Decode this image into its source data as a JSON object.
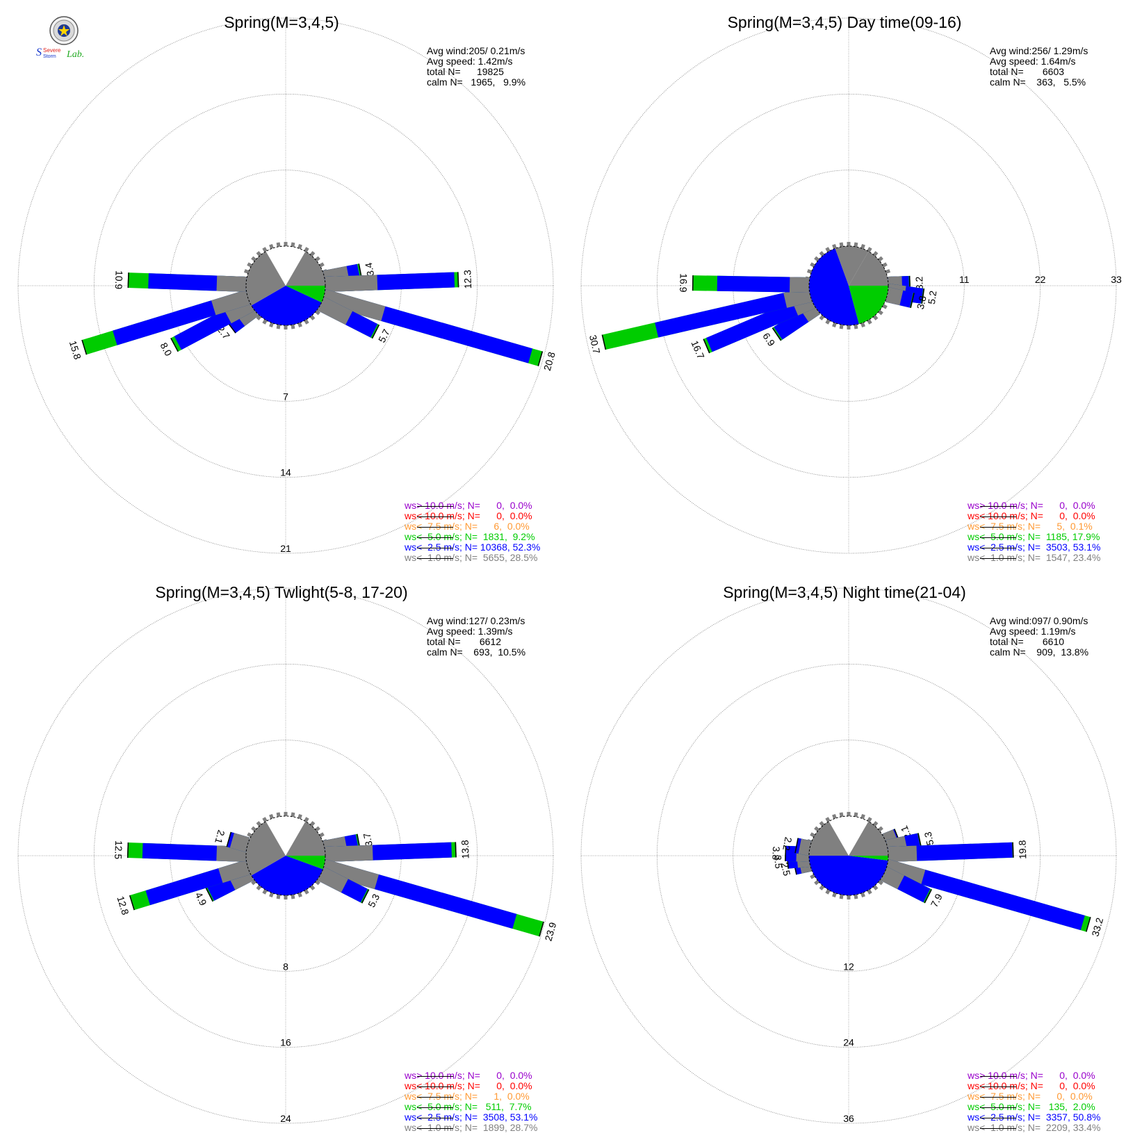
{
  "logo": {
    "icon": "severe-storm-lab-seal",
    "text": [
      "Severe",
      "Storm",
      "Lab."
    ]
  },
  "chart_data": [
    {
      "type": "windrose",
      "title": "Spring(M=3,4,5)",
      "stats": [
        "Avg wind:205/ 0.21m/s",
        "Avg speed: 1.42m/s",
        "total N=      19825",
        "calm N=   1965,   9.9%"
      ],
      "calm_pct": 9.9,
      "ring_max": 21,
      "ring_labels": [
        "7",
        "14",
        "21"
      ],
      "ring_label_side": "bottom",
      "calm_pie": [
        {
          "cls": "lt1",
          "start": 30,
          "end": 90
        },
        {
          "cls": "lt5",
          "start": 90,
          "end": 115
        },
        {
          "cls": "lt25",
          "start": 115,
          "end": 240
        },
        {
          "cls": "lt1",
          "start": 240,
          "end": 330
        }
      ],
      "petals": [
        {
          "dir": 79,
          "label": "3.4",
          "speed_pct": {
            "lt1": 2.2,
            "lt25": 3.2,
            "lt5": 3.4
          }
        },
        {
          "dir": 88,
          "label": "12.3",
          "speed_pct": {
            "lt1": 4.8,
            "lt25": 11.9,
            "lt5": 12.3
          }
        },
        {
          "dir": 106,
          "label": "20.8",
          "speed_pct": {
            "lt1": 5.7,
            "lt25": 19.8,
            "lt5": 20.8
          }
        },
        {
          "dir": 117,
          "label": "5.7",
          "speed_pct": {
            "lt1": 2.9,
            "lt25": 5.5,
            "lt5": 5.7
          }
        },
        {
          "dir": 233,
          "label": "2.7",
          "speed_pct": {
            "lt1": 1.6,
            "lt25": 2.7,
            "lt5": 2.7
          }
        },
        {
          "dir": 242,
          "label": "8.0",
          "speed_pct": {
            "lt1": 2.4,
            "lt25": 7.6,
            "lt5": 8.0
          }
        },
        {
          "dir": 253,
          "label": "15.8",
          "speed_pct": {
            "lt1": 3.3,
            "lt25": 12.8,
            "lt5": 15.8
          }
        },
        {
          "dir": 272,
          "label": "10.9",
          "speed_pct": {
            "lt1": 2.7,
            "lt25": 9.0,
            "lt5": 10.9
          }
        }
      ],
      "legend": [
        {
          "cls": "gt10",
          "color": "#9900cc",
          "text": "ws> 10.0 m/s; N=      0,  0.0%"
        },
        {
          "cls": "lt10",
          "color": "#ff0000",
          "text": "ws< 10.0 m/s; N=      0,  0.0%"
        },
        {
          "cls": "lt75",
          "color": "#ff9933",
          "text": "ws<  7.5 m/s; N=      6,  0.0%"
        },
        {
          "cls": "lt5",
          "color": "#00cc00",
          "text": "ws<  5.0 m/s; N=  1831,  9.2%"
        },
        {
          "cls": "lt25",
          "color": "#0000ff",
          "text": "ws<  2.5 m/s; N= 10368, 52.3%"
        },
        {
          "cls": "lt1",
          "color": "#808080",
          "text": "ws<  1.0 m/s; N=  5655, 28.5%"
        }
      ]
    },
    {
      "type": "windrose",
      "title": "Spring(M=3,4,5) Day time(09-16)",
      "stats": [
        "Avg wind:256/ 1.29m/s",
        "Avg speed: 1.64m/s",
        "total N=       6603",
        "calm N=    363,   5.5%"
      ],
      "calm_pct": 5.5,
      "ring_max": 33,
      "ring_labels": [
        "11",
        "22",
        "33"
      ],
      "ring_label_side": "right",
      "calm_pie": [
        {
          "cls": "lt1",
          "start": 340,
          "end": 30
        },
        {
          "cls": "lt1",
          "start": 30,
          "end": 90
        },
        {
          "cls": "lt5",
          "start": 90,
          "end": 165
        },
        {
          "cls": "lt25",
          "start": 165,
          "end": 340
        }
      ],
      "petals": [
        {
          "dir": 88,
          "label": "3.2",
          "speed_pct": {
            "lt1": 2.0,
            "lt25": 3.0,
            "lt5": 3.2
          }
        },
        {
          "dir": 98,
          "label": "5.2",
          "speed_pct": {
            "lt1": 2.5,
            "lt25": 5.0,
            "lt5": 5.2
          }
        },
        {
          "dir": 103,
          "label": "3.8",
          "speed_pct": {
            "lt1": 2.1,
            "lt25": 3.6,
            "lt5": 3.8
          }
        },
        {
          "dir": 236,
          "label": "6.9",
          "speed_pct": {
            "lt1": 2.0,
            "lt25": 6.6,
            "lt5": 6.9
          }
        },
        {
          "dir": 247,
          "label": "16.7",
          "speed_pct": {
            "lt1": 2.7,
            "lt25": 16.2,
            "lt5": 16.7
          }
        },
        {
          "dir": 257,
          "label": "30.7",
          "speed_pct": {
            "lt1": 3.7,
            "lt25": 22.8,
            "lt5": 30.7
          }
        },
        {
          "dir": 271,
          "label": "16.9",
          "speed_pct": {
            "lt1": 2.8,
            "lt25": 13.3,
            "lt5": 16.9
          }
        }
      ],
      "legend": [
        {
          "cls": "gt10",
          "color": "#9900cc",
          "text": "ws> 10.0 m/s; N=      0,  0.0%"
        },
        {
          "cls": "lt10",
          "color": "#ff0000",
          "text": "ws< 10.0 m/s; N=      0,  0.0%"
        },
        {
          "cls": "lt75",
          "color": "#ff9933",
          "text": "ws<  7.5 m/s; N=      5,  0.1%"
        },
        {
          "cls": "lt5",
          "color": "#00cc00",
          "text": "ws<  5.0 m/s; N=  1185, 17.9%"
        },
        {
          "cls": "lt25",
          "color": "#0000ff",
          "text": "ws<  2.5 m/s; N=  3503, 53.1%"
        },
        {
          "cls": "lt1",
          "color": "#808080",
          "text": "ws<  1.0 m/s; N=  1547, 23.4%"
        }
      ]
    },
    {
      "type": "windrose",
      "title": "Spring(M=3,4,5) Twlight(5-8, 17-20)",
      "stats": [
        "Avg wind:127/ 0.23m/s",
        "Avg speed: 1.39m/s",
        "total N=       6612",
        "calm N=    693,  10.5%"
      ],
      "calm_pct": 10.5,
      "ring_max": 24,
      "ring_labels": [
        "8",
        "16",
        "24"
      ],
      "ring_label_side": "bottom",
      "calm_pie": [
        {
          "cls": "lt1",
          "start": 30,
          "end": 90
        },
        {
          "cls": "lt5",
          "start": 90,
          "end": 110
        },
        {
          "cls": "lt25",
          "start": 110,
          "end": 240
        },
        {
          "cls": "lt1",
          "start": 240,
          "end": 330
        }
      ],
      "petals": [
        {
          "dir": 79,
          "label": "3.7",
          "speed_pct": {
            "lt1": 2.3,
            "lt25": 3.5,
            "lt5": 3.7
          }
        },
        {
          "dir": 88,
          "label": "13.8",
          "speed_pct": {
            "lt1": 5.0,
            "lt25": 13.3,
            "lt5": 13.8
          }
        },
        {
          "dir": 106,
          "label": "23.9",
          "speed_pct": {
            "lt1": 5.8,
            "lt25": 20.9,
            "lt5": 23.9
          }
        },
        {
          "dir": 117,
          "label": "5.3",
          "speed_pct": {
            "lt1": 2.8,
            "lt25": 5.1,
            "lt5": 5.3
          }
        },
        {
          "dir": 243,
          "label": "4.9",
          "speed_pct": {
            "lt1": 2.2,
            "lt25": 4.7,
            "lt5": 4.9
          }
        },
        {
          "dir": 253,
          "label": "12.8",
          "speed_pct": {
            "lt1": 3.0,
            "lt25": 11.0,
            "lt5": 12.8
          }
        },
        {
          "dir": 272,
          "label": "12.5",
          "speed_pct": {
            "lt1": 3.1,
            "lt25": 10.9,
            "lt5": 12.5
          }
        },
        {
          "dir": 286,
          "label": "2.1",
          "speed_pct": {
            "lt1": 1.7,
            "lt25": 2.0,
            "lt5": 2.1
          }
        }
      ],
      "legend": [
        {
          "cls": "gt10",
          "color": "#9900cc",
          "text": "ws> 10.0 m/s; N=      0,  0.0%"
        },
        {
          "cls": "lt10",
          "color": "#ff0000",
          "text": "ws< 10.0 m/s; N=      0,  0.0%"
        },
        {
          "cls": "lt75",
          "color": "#ff9933",
          "text": "ws<  7.5 m/s; N=      1,  0.0%"
        },
        {
          "cls": "lt5",
          "color": "#00cc00",
          "text": "ws<  5.0 m/s; N=   511,  7.7%"
        },
        {
          "cls": "lt25",
          "color": "#0000ff",
          "text": "ws<  2.5 m/s; N=  3508, 53.1%"
        },
        {
          "cls": "lt1",
          "color": "#808080",
          "text": "ws<  1.0 m/s; N=  1899, 28.7%"
        }
      ]
    },
    {
      "type": "windrose",
      "title": "Spring(M=3,4,5) Night time(21-04)",
      "stats": [
        "Avg wind:097/ 0.90m/s",
        "Avg speed: 1.19m/s",
        "total N=       6610",
        "calm N=    909,  13.8%"
      ],
      "calm_pct": 13.8,
      "ring_max": 36,
      "ring_labels": [
        "12",
        "24",
        "36"
      ],
      "ring_label_side": "bottom",
      "calm_pie": [
        {
          "cls": "lt1",
          "start": 30,
          "end": 90
        },
        {
          "cls": "lt5",
          "start": 90,
          "end": 97
        },
        {
          "cls": "lt25",
          "start": 97,
          "end": 270
        },
        {
          "cls": "lt1",
          "start": 270,
          "end": 330
        }
      ],
      "petals": [
        {
          "dir": 68,
          "label": "2.1",
          "speed_pct": {
            "lt1": 1.8,
            "lt25": 2.0,
            "lt5": 2.1
          }
        },
        {
          "dir": 78,
          "label": "5.3",
          "speed_pct": {
            "lt1": 3.0,
            "lt25": 5.1,
            "lt5": 5.3
          }
        },
        {
          "dir": 88,
          "label": "19.8",
          "speed_pct": {
            "lt1": 4.5,
            "lt25": 19.6,
            "lt5": 19.8
          }
        },
        {
          "dir": 106,
          "label": "33.2",
          "speed_pct": {
            "lt1": 6.0,
            "lt25": 32.2,
            "lt5": 33.2
          }
        },
        {
          "dir": 117,
          "label": "7.9",
          "speed_pct": {
            "lt1": 3.0,
            "lt25": 7.6,
            "lt5": 7.9
          }
        },
        {
          "dir": 258,
          "label": "2.5",
          "speed_pct": {
            "lt1": 1.6,
            "lt25": 2.5,
            "lt5": 2.5
          }
        },
        {
          "dir": 265,
          "label": "3.5",
          "speed_pct": {
            "lt1": 1.9,
            "lt25": 3.4,
            "lt5": 3.5
          }
        },
        {
          "dir": 272,
          "label": "3.8",
          "speed_pct": {
            "lt1": 2.0,
            "lt25": 3.7,
            "lt5": 3.8
          }
        },
        {
          "dir": 281,
          "label": "2.2",
          "speed_pct": {
            "lt1": 1.6,
            "lt25": 2.1,
            "lt5": 2.2
          }
        }
      ],
      "legend": [
        {
          "cls": "gt10",
          "color": "#9900cc",
          "text": "ws> 10.0 m/s; N=      0,  0.0%"
        },
        {
          "cls": "lt10",
          "color": "#ff0000",
          "text": "ws< 10.0 m/s; N=      0,  0.0%"
        },
        {
          "cls": "lt75",
          "color": "#ff9933",
          "text": "ws<  7.5 m/s; N=      0,  0.0%"
        },
        {
          "cls": "lt5",
          "color": "#00cc00",
          "text": "ws<  5.0 m/s; N=   135,  2.0%"
        },
        {
          "cls": "lt25",
          "color": "#0000ff",
          "text": "ws<  2.5 m/s; N=  3357, 50.8%"
        },
        {
          "cls": "lt1",
          "color": "#808080",
          "text": "ws<  1.0 m/s; N=  2209, 33.4%"
        }
      ]
    }
  ]
}
